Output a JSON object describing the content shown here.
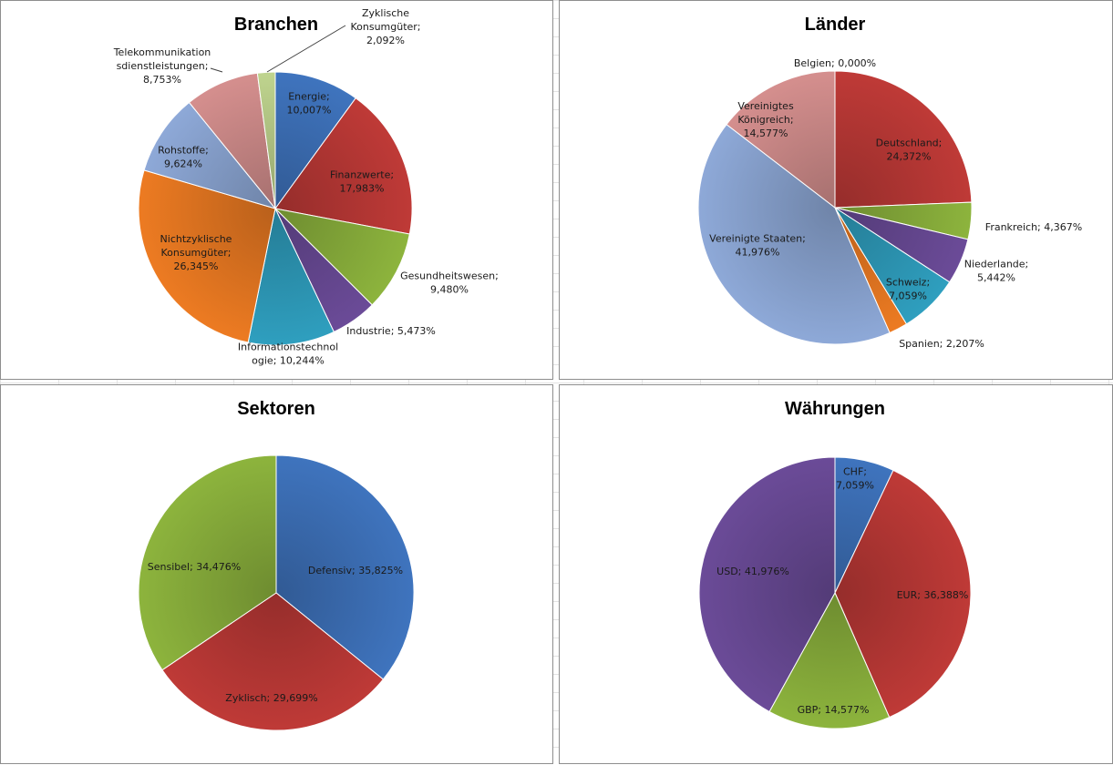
{
  "colors": {
    "blue": "#3f74be",
    "red": "#bf3a37",
    "green": "#8db43d",
    "purple": "#6b4b98",
    "teal": "#2f9fbf",
    "orange": "#ed7b22",
    "lightblue": "#8ea9d8",
    "salmon": "#d58f8e",
    "lightgreen": "#bfd48e",
    "lightpurple": "#a494c2"
  },
  "chart_data": [
    {
      "id": "branchen",
      "type": "pie",
      "title": "Branchen",
      "slices": [
        {
          "label": "Energie; 10,007%",
          "value": 10.007,
          "color": "#3f74be"
        },
        {
          "label": "Finanzwerte; 17,983%",
          "value": 17.983,
          "color": "#bf3a37"
        },
        {
          "label": "Gesundheitswesen; 9,480%",
          "value": 9.48,
          "color": "#8db43d"
        },
        {
          "label": "Industrie; 5,473%",
          "value": 5.473,
          "color": "#6b4b98"
        },
        {
          "label": "Informationstechnologie; 10,244%",
          "value": 10.244,
          "color": "#2f9fbf"
        },
        {
          "label": "Nichtzyklische Konsumgüter; 26,345%",
          "value": 26.345,
          "color": "#ed7b22"
        },
        {
          "label": "Rohstoffe; 9,624%",
          "value": 9.624,
          "color": "#8ea9d8"
        },
        {
          "label": "Telekommunikationsdienstleistungen; 8,753%",
          "value": 8.753,
          "color": "#d58f8e"
        },
        {
          "label": "Zyklische Konsumgüter; 2,092%",
          "value": 2.092,
          "color": "#bfd48e"
        }
      ]
    },
    {
      "id": "laender",
      "type": "pie",
      "title": "Länder",
      "slices": [
        {
          "label": "Belgien; 0,000%",
          "value": 0.0,
          "color": "#3f74be"
        },
        {
          "label": "Deutschland; 24,372%",
          "value": 24.372,
          "color": "#bf3a37"
        },
        {
          "label": "Frankreich; 4,367%",
          "value": 4.367,
          "color": "#8db43d"
        },
        {
          "label": "Niederlande; 5,442%",
          "value": 5.442,
          "color": "#6b4b98"
        },
        {
          "label": "Schweiz; 7,059%",
          "value": 7.059,
          "color": "#2f9fbf"
        },
        {
          "label": "Spanien; 2,207%",
          "value": 2.207,
          "color": "#ed7b22"
        },
        {
          "label": "Vereinigte Staaten; 41,976%",
          "value": 41.976,
          "color": "#8ea9d8"
        },
        {
          "label": "Vereinigtes Königreich; 14,577%",
          "value": 14.577,
          "color": "#d58f8e"
        }
      ]
    },
    {
      "id": "sektoren",
      "type": "pie",
      "title": "Sektoren",
      "slices": [
        {
          "label": "Defensiv; 35,825%",
          "value": 35.825,
          "color": "#3f74be"
        },
        {
          "label": "Zyklisch; 29,699%",
          "value": 29.699,
          "color": "#bf3a37"
        },
        {
          "label": "Sensibel; 34,476%",
          "value": 34.476,
          "color": "#8db43d"
        }
      ]
    },
    {
      "id": "waehrungen",
      "type": "pie",
      "title": "Währungen",
      "slices": [
        {
          "label": "CHF; 7,059%",
          "value": 7.059,
          "color": "#3f74be"
        },
        {
          "label": "EUR; 36,388%",
          "value": 36.388,
          "color": "#bf3a37"
        },
        {
          "label": "GBP; 14,577%",
          "value": 14.577,
          "color": "#8db43d"
        },
        {
          "label": "USD; 41,976%",
          "value": 41.976,
          "color": "#6b4b98"
        }
      ]
    }
  ],
  "label_lines": {
    "branchen": [
      [
        "Energie;",
        "10,007%"
      ],
      [
        "Finanzwerte;",
        "17,983%"
      ],
      [
        "Gesundheitswesen;",
        "9,480%"
      ],
      [
        "Industrie; 5,473%"
      ],
      [
        "Informationstechnol",
        "ogie; 10,244%"
      ],
      [
        "Nichtzyklische",
        "Konsumgüter;",
        "26,345%"
      ],
      [
        "Rohstoffe;",
        "9,624%"
      ],
      [
        "Telekommunikation",
        "sdienstleistungen;",
        "8,753%"
      ],
      [
        "Zyklische",
        "Konsumgüter;",
        "2,092%"
      ]
    ],
    "laender": [
      [
        "Belgien; 0,000%"
      ],
      [
        "Deutschland;",
        "24,372%"
      ],
      [
        "Frankreich; 4,367%"
      ],
      [
        "Niederlande;",
        "5,442%"
      ],
      [
        "Schweiz;",
        "7,059%"
      ],
      [
        "Spanien; 2,207%"
      ],
      [
        "Vereinigte Staaten;",
        "41,976%"
      ],
      [
        "Vereinigtes",
        "Königreich;",
        "14,577%"
      ]
    ],
    "sektoren": [
      [
        "Defensiv; 35,825%"
      ],
      [
        "Zyklisch; 29,699%"
      ],
      [
        "Sensibel; 34,476%"
      ]
    ],
    "waehrungen": [
      [
        "CHF;",
        "7,059%"
      ],
      [
        "EUR;  36,388%"
      ],
      [
        "GBP; 14,577%"
      ],
      [
        "USD; 41,976%"
      ]
    ]
  }
}
